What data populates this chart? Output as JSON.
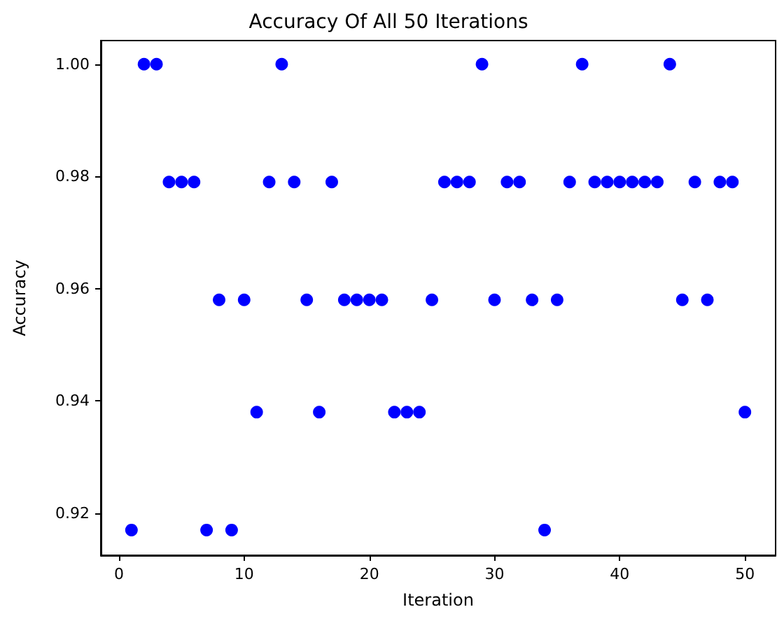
{
  "chart_data": {
    "type": "scatter",
    "title": "Accuracy Of All 50 Iterations",
    "xlabel": "Iteration",
    "ylabel": "Accuracy",
    "x": [
      1,
      2,
      3,
      4,
      5,
      6,
      7,
      8,
      9,
      10,
      11,
      12,
      13,
      14,
      15,
      16,
      17,
      18,
      19,
      20,
      21,
      22,
      23,
      24,
      25,
      26,
      27,
      28,
      29,
      30,
      31,
      32,
      33,
      34,
      35,
      36,
      37,
      38,
      39,
      40,
      41,
      42,
      43,
      44,
      45,
      46,
      47,
      48,
      49,
      50
    ],
    "series": [
      {
        "color": "#0000ff",
        "values": [
          0.917,
          1.0,
          1.0,
          0.979,
          0.979,
          0.979,
          0.917,
          0.958,
          0.917,
          0.958,
          0.938,
          0.979,
          1.0,
          0.979,
          0.958,
          0.938,
          0.979,
          0.958,
          0.958,
          0.958,
          0.958,
          0.938,
          0.938,
          0.938,
          0.958,
          0.979,
          0.979,
          0.979,
          1.0,
          0.958,
          0.979,
          0.979,
          0.958,
          0.917,
          0.958,
          0.979,
          1.0,
          0.979,
          0.979,
          0.979,
          0.979,
          0.979,
          0.979,
          1.0,
          0.958,
          0.979,
          0.958,
          0.979,
          0.979,
          0.938
        ]
      }
    ],
    "xlim": [
      -1.45,
      52.45
    ],
    "ylim": [
      0.9125,
      1.0042
    ],
    "xticks": [
      0,
      10,
      20,
      30,
      40,
      50
    ],
    "yticks": [
      0.92,
      0.94,
      0.96,
      0.98,
      {
        "value": 1.0,
        "label": "1.00"
      }
    ],
    "marker": "circle",
    "grid": false
  }
}
